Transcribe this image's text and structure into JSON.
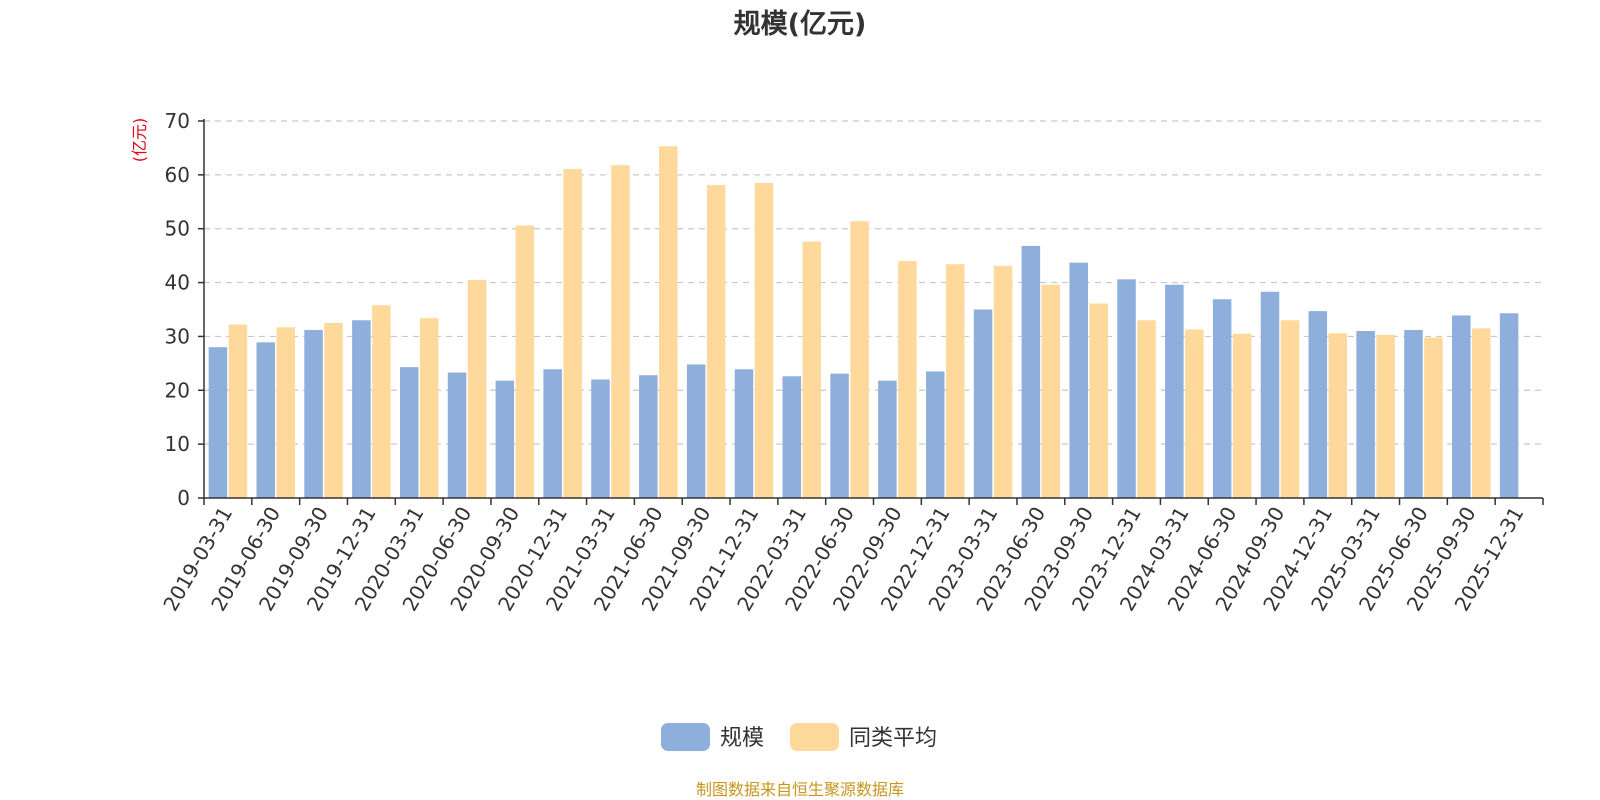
{
  "chart_data": {
    "type": "bar",
    "title": "规模(亿元)",
    "ylabel": "(亿元)",
    "xlabel": "",
    "ylim": [
      0,
      70
    ],
    "yticks": [
      0,
      10,
      20,
      30,
      40,
      50,
      60,
      70
    ],
    "grid": "horizontal-dashed",
    "legend_position": "bottom-center",
    "categories": [
      "2019-03-31",
      "2019-06-30",
      "2019-09-30",
      "2019-12-31",
      "2020-03-31",
      "2020-06-30",
      "2020-09-30",
      "2020-12-31",
      "2021-03-31",
      "2021-06-30",
      "2021-09-30",
      "2021-12-31",
      "2022-03-31",
      "2022-06-30",
      "2022-09-30",
      "2022-12-31",
      "2023-03-31",
      "2023-06-30",
      "2023-09-30",
      "2023-12-31",
      "2024-03-31",
      "2024-06-30",
      "2024-09-30",
      "2024-12-31",
      "2025-03-31",
      "2025-06-30",
      "2025-09-30",
      "2025-12-31"
    ],
    "series": [
      {
        "name": "规模",
        "color": "#8eaedc",
        "values": [
          28.0,
          28.9,
          31.2,
          33.0,
          24.3,
          23.3,
          21.8,
          23.9,
          22.0,
          22.8,
          24.8,
          23.9,
          22.6,
          23.1,
          21.8,
          23.5,
          35.0,
          46.8,
          43.7,
          40.6,
          39.6,
          36.9,
          38.3,
          34.7,
          31.0,
          31.2,
          33.9,
          34.3
        ]
      },
      {
        "name": "同类平均",
        "color": "#ffd99b",
        "values": [
          32.2,
          31.7,
          32.5,
          35.8,
          33.4,
          40.5,
          50.6,
          61.1,
          61.8,
          65.3,
          58.1,
          58.5,
          47.6,
          51.4,
          44.0,
          43.4,
          43.1,
          39.6,
          36.1,
          33.0,
          31.3,
          30.5,
          33.0,
          30.6,
          30.3,
          29.8,
          31.5,
          null
        ]
      }
    ]
  },
  "source": "制图数据来自恒生聚源数据库"
}
